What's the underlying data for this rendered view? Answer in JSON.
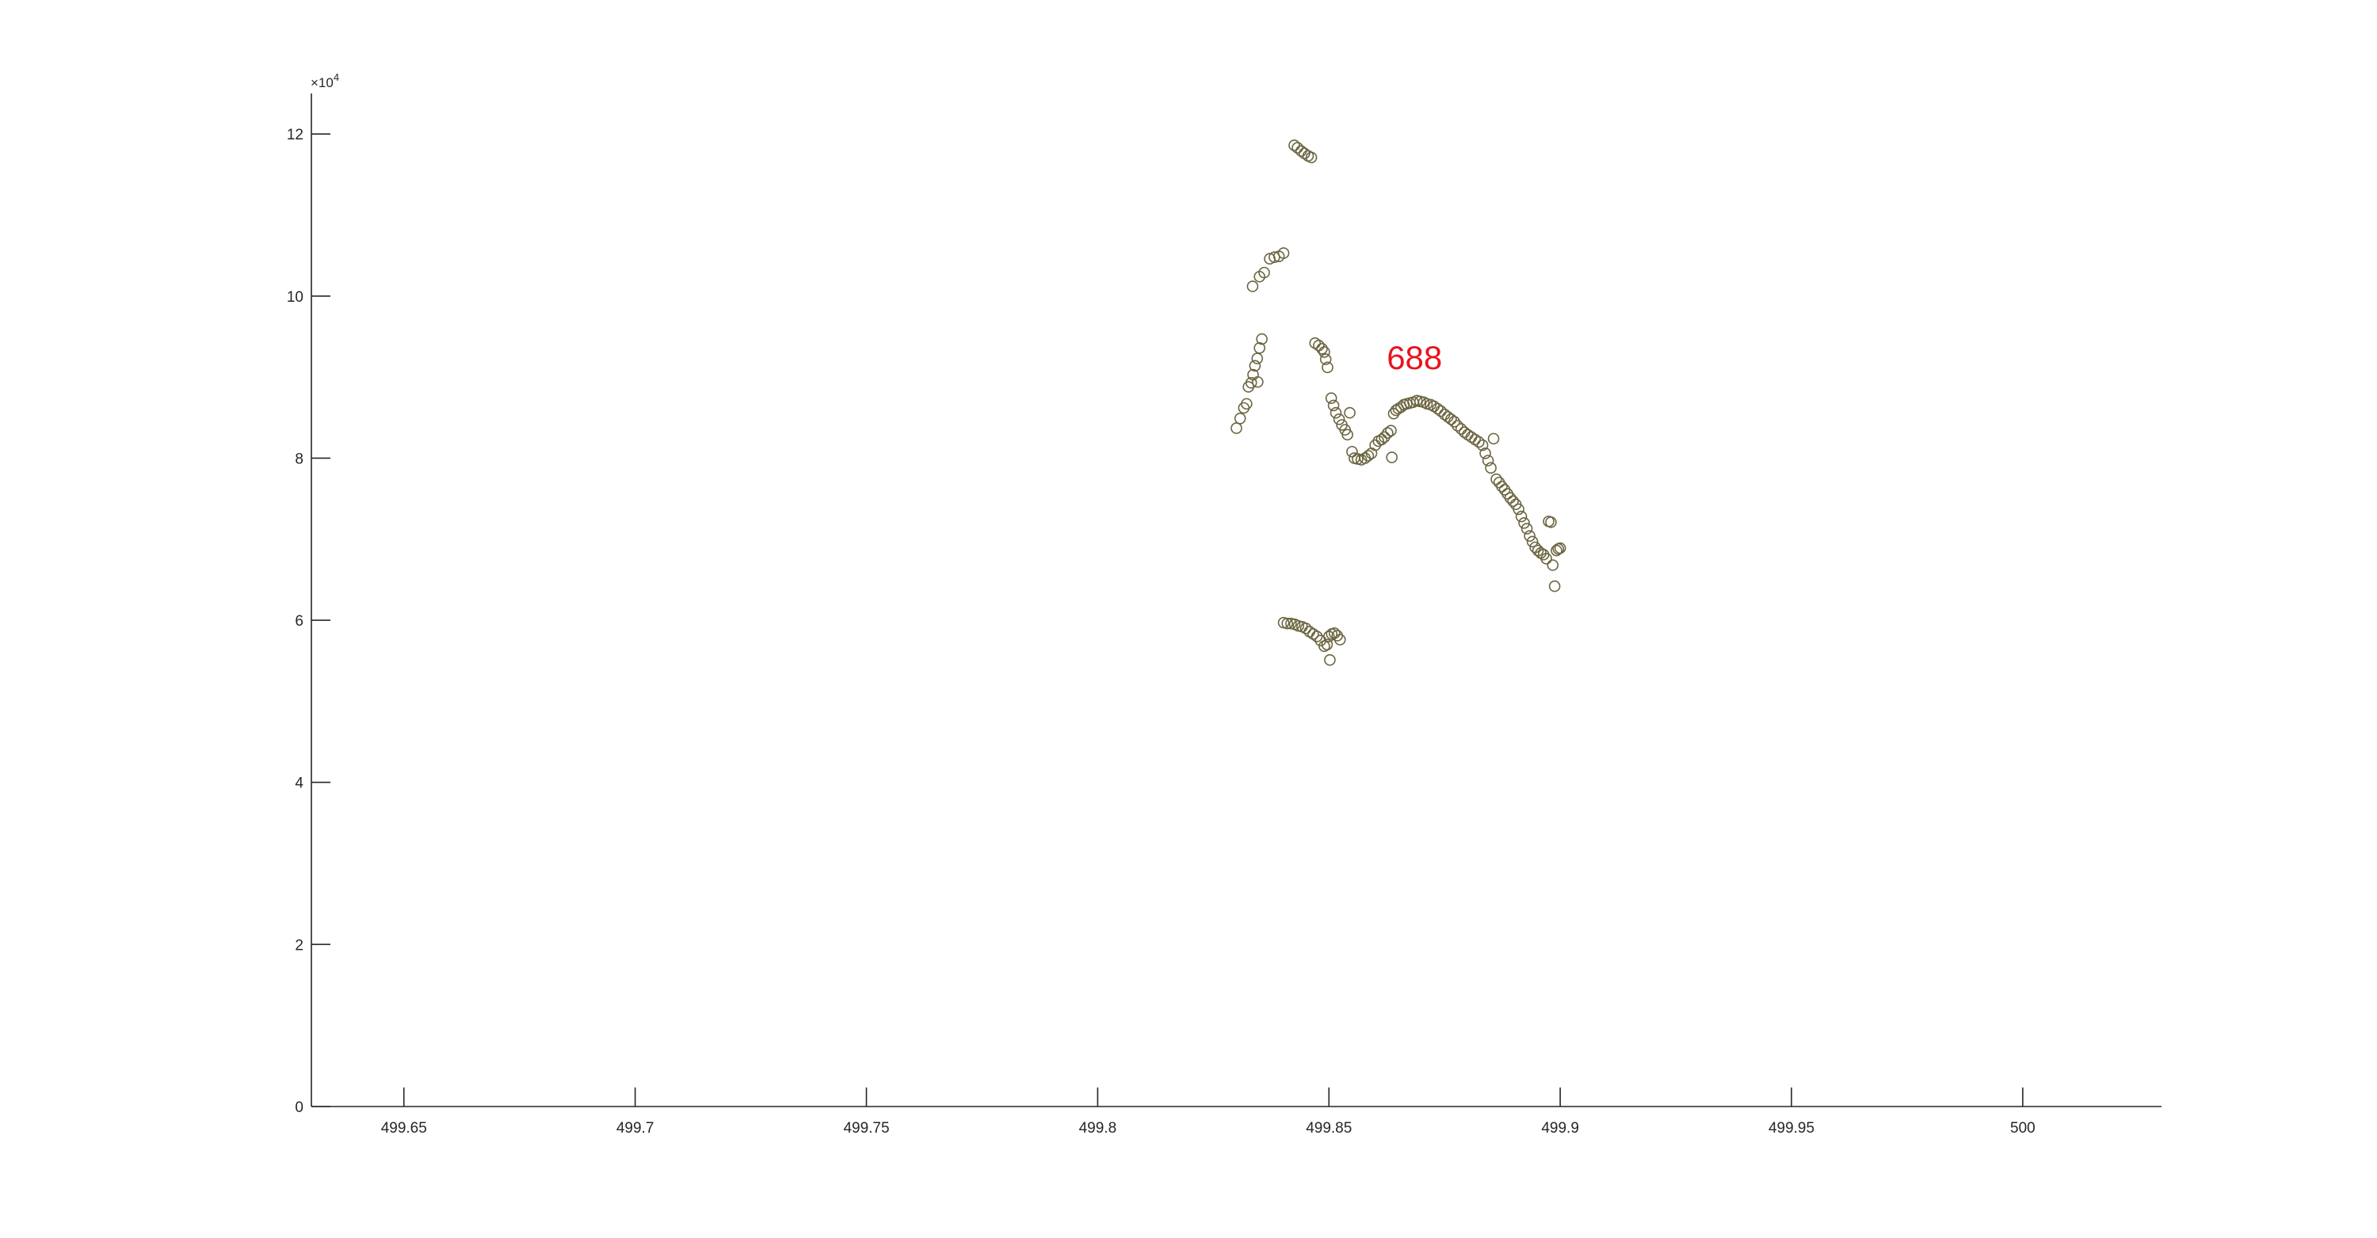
{
  "chart_data": {
    "type": "scatter",
    "title": "",
    "xlabel": "",
    "ylabel": "",
    "xlim": [
      499.63,
      500.03
    ],
    "ylim": [
      0,
      125000
    ],
    "x_ticks": [
      499.65,
      499.7,
      499.75,
      499.8,
      499.85,
      499.9,
      499.95,
      500
    ],
    "x_tick_labels": [
      "499.65",
      "499.7",
      "499.75",
      "499.8",
      "499.85",
      "499.9",
      "499.95",
      "500"
    ],
    "y_ticks": [
      0,
      20000,
      40000,
      60000,
      80000,
      100000,
      120000
    ],
    "y_tick_labels": [
      "0",
      "2",
      "4",
      "6",
      "8",
      "10",
      "12"
    ],
    "y_exponent": {
      "base": "×10",
      "power": "4"
    },
    "grid": false,
    "marker": {
      "shape": "circle",
      "filled": false,
      "color": "#6b6540"
    },
    "annotation": {
      "text": "688",
      "x": 499.8685,
      "y": 91000,
      "color": "#e8141e"
    },
    "series": [
      {
        "points": [
          [
            499.8425,
            118600
          ],
          [
            499.8432,
            118300
          ],
          [
            499.844,
            117900
          ],
          [
            499.8447,
            117600
          ],
          [
            499.8455,
            117300
          ],
          [
            499.8462,
            117100
          ],
          [
            499.8335,
            101200
          ],
          [
            499.835,
            102400
          ],
          [
            499.836,
            102900
          ],
          [
            499.8372,
            104600
          ],
          [
            499.8382,
            104800
          ],
          [
            499.8392,
            104900
          ],
          [
            499.8402,
            105300
          ],
          [
            499.83,
            83700
          ],
          [
            499.8308,
            84900
          ],
          [
            499.8316,
            86200
          ],
          [
            499.8322,
            86700
          ],
          [
            499.8326,
            88800
          ],
          [
            499.8332,
            89300
          ],
          [
            499.8336,
            90300
          ],
          [
            499.834,
            91400
          ],
          [
            499.8345,
            92300
          ],
          [
            499.835,
            93600
          ],
          [
            499.8355,
            94700
          ],
          [
            499.8346,
            89400
          ],
          [
            499.847,
            94200
          ],
          [
            499.8478,
            93900
          ],
          [
            499.8485,
            93500
          ],
          [
            499.849,
            93100
          ],
          [
            499.8493,
            92200
          ],
          [
            499.8497,
            91200
          ],
          [
            499.8505,
            87400
          ],
          [
            499.851,
            86500
          ],
          [
            499.8515,
            85600
          ],
          [
            499.8522,
            84800
          ],
          [
            499.8528,
            84100
          ],
          [
            499.8535,
            83500
          ],
          [
            499.854,
            82900
          ],
          [
            499.8545,
            85600
          ],
          [
            499.855,
            80800
          ],
          [
            499.8555,
            80000
          ],
          [
            499.8562,
            79900
          ],
          [
            499.857,
            79800
          ],
          [
            499.8578,
            80000
          ],
          [
            499.8585,
            80300
          ],
          [
            499.8592,
            80600
          ],
          [
            499.86,
            81600
          ],
          [
            499.8607,
            82100
          ],
          [
            499.8614,
            82300
          ],
          [
            499.862,
            82600
          ],
          [
            499.8627,
            83100
          ],
          [
            499.8634,
            83400
          ],
          [
            499.8636,
            80100
          ],
          [
            499.864,
            85500
          ],
          [
            499.8645,
            85900
          ],
          [
            499.865,
            86100
          ],
          [
            499.8656,
            86300
          ],
          [
            499.8662,
            86600
          ],
          [
            499.8668,
            86700
          ],
          [
            499.8675,
            86800
          ],
          [
            499.8682,
            86900
          ],
          [
            499.869,
            87100
          ],
          [
            499.8697,
            87000
          ],
          [
            499.8705,
            86900
          ],
          [
            499.8712,
            86700
          ],
          [
            499.872,
            86600
          ],
          [
            499.8727,
            86400
          ],
          [
            499.8735,
            86100
          ],
          [
            499.8742,
            85800
          ],
          [
            499.875,
            85400
          ],
          [
            499.8757,
            85100
          ],
          [
            499.8764,
            84800
          ],
          [
            499.8771,
            84500
          ],
          [
            499.8778,
            84000
          ],
          [
            499.8786,
            83600
          ],
          [
            499.8793,
            83200
          ],
          [
            499.88,
            82900
          ],
          [
            499.8808,
            82600
          ],
          [
            499.8816,
            82300
          ],
          [
            499.8824,
            82000
          ],
          [
            499.8832,
            81600
          ],
          [
            499.8838,
            80600
          ],
          [
            499.8844,
            79700
          ],
          [
            499.885,
            78800
          ],
          [
            499.8856,
            82400
          ],
          [
            499.8862,
            77400
          ],
          [
            499.8868,
            77000
          ],
          [
            499.8874,
            76500
          ],
          [
            499.888,
            76100
          ],
          [
            499.8886,
            75600
          ],
          [
            499.8892,
            75100
          ],
          [
            499.8898,
            74700
          ],
          [
            499.8904,
            74300
          ],
          [
            499.891,
            73700
          ],
          [
            499.8916,
            72800
          ],
          [
            499.8922,
            72000
          ],
          [
            499.8928,
            71300
          ],
          [
            499.8934,
            70400
          ],
          [
            499.894,
            69700
          ],
          [
            499.8946,
            69000
          ],
          [
            499.8952,
            68600
          ],
          [
            499.8958,
            68300
          ],
          [
            499.8964,
            68100
          ],
          [
            499.897,
            67600
          ],
          [
            499.8975,
            72200
          ],
          [
            499.898,
            72100
          ],
          [
            499.8984,
            66800
          ],
          [
            499.8988,
            64200
          ],
          [
            499.8992,
            68600
          ],
          [
            499.8996,
            68800
          ],
          [
            499.9,
            68900
          ],
          [
            499.8402,
            59700
          ],
          [
            499.841,
            59600
          ],
          [
            499.8418,
            59600
          ],
          [
            499.8426,
            59500
          ],
          [
            499.8434,
            59300
          ],
          [
            499.8442,
            59200
          ],
          [
            499.845,
            59000
          ],
          [
            499.8458,
            58600
          ],
          [
            499.8466,
            58300
          ],
          [
            499.8474,
            58000
          ],
          [
            499.8482,
            57500
          ],
          [
            499.849,
            56800
          ],
          [
            499.8496,
            57000
          ],
          [
            499.85,
            58000
          ],
          [
            499.8506,
            58300
          ],
          [
            499.8512,
            58400
          ],
          [
            499.8518,
            58100
          ],
          [
            499.8524,
            57600
          ],
          [
            499.8502,
            55100
          ]
        ]
      }
    ]
  }
}
